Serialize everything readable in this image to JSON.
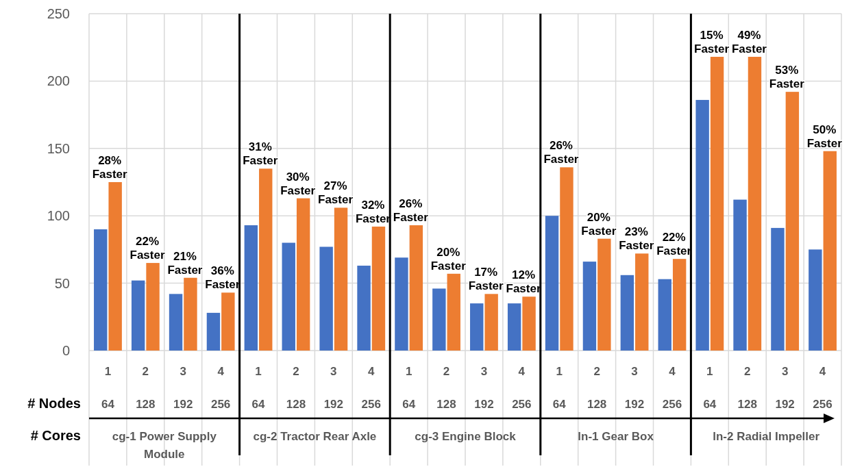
{
  "chart_data": {
    "type": "bar",
    "categories": [
      "1",
      "2",
      "3",
      "4",
      "1",
      "2",
      "3",
      "4",
      "1",
      "2",
      "3",
      "4",
      "1",
      "2",
      "3",
      "4",
      "1",
      "2",
      "3",
      "4"
    ],
    "series": [
      {
        "color": "#4472c4",
        "values": [
          90,
          52,
          42,
          28,
          93,
          80,
          77,
          63,
          69,
          46,
          35,
          35,
          100,
          66,
          56,
          53,
          186,
          112,
          91,
          75
        ]
      },
      {
        "color": "#ed7d31",
        "values": [
          125,
          65,
          54,
          43,
          135,
          113,
          106,
          92,
          93,
          57,
          42,
          40,
          136,
          83,
          72,
          68,
          218,
          218,
          192,
          148
        ]
      }
    ],
    "ylim": [
      0,
      250
    ],
    "yticks": [
      0,
      50,
      100,
      150,
      200,
      250
    ],
    "grid": true,
    "annotations": [
      "# Nodes",
      "# Cores",
      "64",
      "128",
      "192",
      "256",
      "64",
      "128",
      "192",
      "256",
      "64",
      "128",
      "192",
      "256",
      "64",
      "128",
      "192",
      "256",
      "64",
      "128",
      "192",
      "256",
      "cg-1 Power Supply Module",
      "cg-2 Tractor Rear Axle",
      "cg-3 Engine Block",
      "ln-1 Gear Box",
      "ln-2 Radial Impeller",
      "28% Faster",
      "22% Faster",
      "21% Faster",
      "36% Faster",
      "31% Faster",
      "30% Faster",
      "27% Faster",
      "32% Faster",
      "26% Faster",
      "20% Faster",
      "17% Faster",
      "12% Faster",
      "26% Faster",
      "20% Faster",
      "23% Faster",
      "22% Faster",
      "15% Faster",
      "49% Faster",
      "53% Faster",
      "50% Faster"
    ]
  }
}
